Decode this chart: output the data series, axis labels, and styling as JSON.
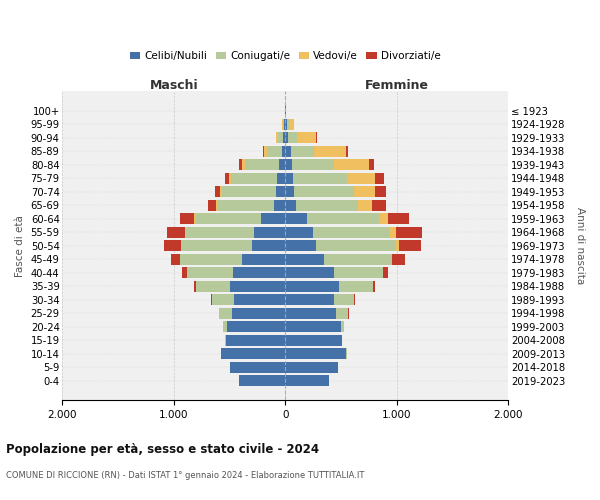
{
  "age_groups": [
    "0-4",
    "5-9",
    "10-14",
    "15-19",
    "20-24",
    "25-29",
    "30-34",
    "35-39",
    "40-44",
    "45-49",
    "50-54",
    "55-59",
    "60-64",
    "65-69",
    "70-74",
    "75-79",
    "80-84",
    "85-89",
    "90-94",
    "95-99",
    "100+"
  ],
  "birth_years": [
    "2019-2023",
    "2014-2018",
    "2009-2013",
    "2004-2008",
    "1999-2003",
    "1994-1998",
    "1989-1993",
    "1984-1988",
    "1979-1983",
    "1974-1978",
    "1969-1973",
    "1964-1968",
    "1959-1963",
    "1954-1958",
    "1949-1953",
    "1944-1948",
    "1939-1943",
    "1934-1938",
    "1929-1933",
    "1924-1928",
    "≤ 1923"
  ],
  "males_celibe": [
    415,
    495,
    575,
    535,
    520,
    480,
    460,
    500,
    470,
    390,
    300,
    280,
    220,
    105,
    85,
    75,
    55,
    30,
    20,
    15,
    5
  ],
  "males_coniugato": [
    0,
    0,
    2,
    4,
    38,
    115,
    195,
    305,
    415,
    555,
    635,
    615,
    595,
    505,
    485,
    415,
    305,
    135,
    45,
    8,
    2
  ],
  "males_vedovo": [
    0,
    0,
    0,
    0,
    0,
    0,
    0,
    0,
    0,
    0,
    4,
    4,
    4,
    8,
    13,
    18,
    28,
    28,
    18,
    4,
    0
  ],
  "males_divorziato": [
    0,
    0,
    0,
    0,
    2,
    4,
    8,
    18,
    38,
    78,
    148,
    165,
    128,
    78,
    48,
    38,
    28,
    8,
    4,
    0,
    0
  ],
  "fem_nubile": [
    388,
    468,
    548,
    508,
    498,
    458,
    438,
    478,
    438,
    348,
    278,
    248,
    198,
    98,
    78,
    68,
    58,
    48,
    28,
    18,
    4
  ],
  "fem_coniugata": [
    0,
    0,
    2,
    4,
    28,
    108,
    175,
    305,
    435,
    605,
    715,
    695,
    645,
    555,
    535,
    485,
    375,
    205,
    75,
    12,
    2
  ],
  "fem_vedova": [
    0,
    0,
    0,
    0,
    0,
    0,
    2,
    2,
    4,
    8,
    28,
    48,
    78,
    128,
    195,
    255,
    315,
    295,
    175,
    48,
    4
  ],
  "fem_divorziata": [
    0,
    0,
    0,
    0,
    2,
    4,
    8,
    18,
    48,
    108,
    198,
    238,
    188,
    118,
    98,
    78,
    48,
    14,
    4,
    0,
    0
  ],
  "colors": {
    "celibe_nubile": "#4472a8",
    "coniugato": "#b5c99a",
    "vedovo": "#f0c060",
    "divorziato": "#c0392b"
  },
  "title": "Popolazione per età, sesso e stato civile - 2024",
  "subtitle": "COMUNE DI RICCIONE (RN) - Dati ISTAT 1° gennaio 2024 - Elaborazione TUTTITALIA.IT",
  "xlabel_left": "Maschi",
  "xlabel_right": "Femmine",
  "ylabel_left": "Fasce di età",
  "ylabel_right": "Anni di nascita",
  "legend_labels": [
    "Celibi/Nubili",
    "Coniugati/e",
    "Vedovi/e",
    "Divorziati/e"
  ],
  "background_color": "#ffffff"
}
